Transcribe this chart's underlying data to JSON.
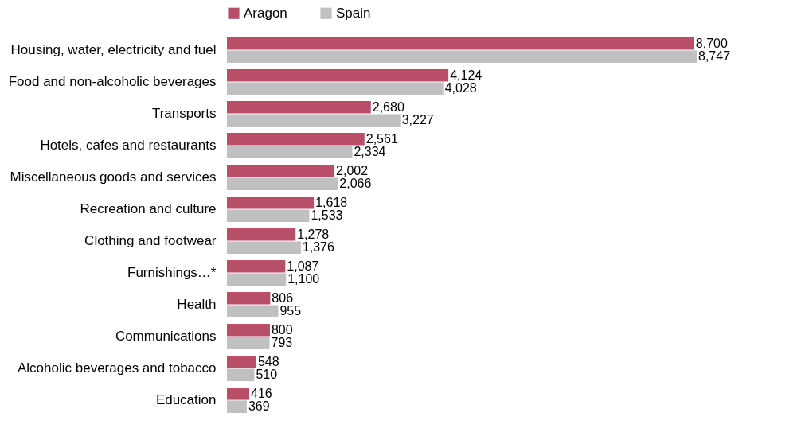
{
  "chart_data": {
    "type": "bar",
    "orientation": "horizontal",
    "legend": "top",
    "grid": false,
    "categories": [
      "Housing, water, electricity and fuel",
      "Food and non-alcoholic beverages",
      "Transports",
      "Hotels, cafes and restaurants",
      "Miscellaneous goods and services",
      "Recreation and culture",
      "Clothing and footwear",
      "Furnishings…*",
      "Health",
      "Communications",
      "Alcoholic beverages and tobacco",
      "Education"
    ],
    "series": [
      {
        "name": "Aragon",
        "color": "#b94e69",
        "values": [
          8700,
          4124,
          2680,
          2561,
          2002,
          1618,
          1278,
          1087,
          806,
          800,
          548,
          416
        ],
        "value_labels": [
          "8,700",
          "4,124",
          "2,680",
          "2,561",
          "2,002",
          "1,618",
          "1,278",
          "1,087",
          "806",
          "800",
          "548",
          "416"
        ]
      },
      {
        "name": "Spain",
        "color": "#c0c0c0",
        "values": [
          8747,
          4028,
          3227,
          2334,
          2066,
          1533,
          1376,
          1100,
          955,
          793,
          510,
          369
        ],
        "value_labels": [
          "8,747",
          "4,028",
          "3,227",
          "2,334",
          "2,066",
          "1,533",
          "1,376",
          "1,100",
          "955",
          "793",
          "510",
          "369"
        ]
      }
    ]
  }
}
